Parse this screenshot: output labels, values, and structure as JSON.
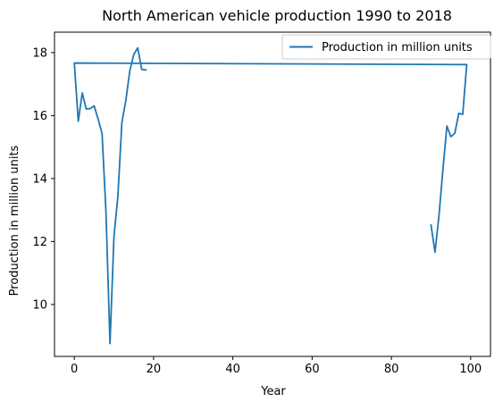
{
  "chart_data": {
    "type": "line",
    "title": "North American vehicle production 1990 to 2018",
    "xlabel": "Year",
    "ylabel": "Production in million units",
    "xlim": [
      -5,
      105
    ],
    "ylim": [
      8.35,
      18.65
    ],
    "x_ticks": [
      0,
      20,
      40,
      60,
      80,
      100
    ],
    "y_ticks": [
      10,
      12,
      14,
      16,
      18
    ],
    "x_tick_labels": [
      "0",
      "20",
      "40",
      "60",
      "80",
      "100"
    ],
    "y_tick_labels": [
      "10",
      "12",
      "14",
      "16",
      "18"
    ],
    "grid": false,
    "legend": {
      "position": "upper right",
      "entries": [
        "Production in million units"
      ]
    },
    "colors": {
      "series": "#1f77b4",
      "axes": "#000000",
      "legend_border": "#cccccc"
    },
    "series": [
      {
        "name": "Production in million units",
        "color": "#1f77b4",
        "points": [
          {
            "x": 90,
            "y": 12.52
          },
          {
            "x": 91,
            "y": 11.66
          },
          {
            "x": 92,
            "y": 12.82
          },
          {
            "x": 93,
            "y": 14.28
          },
          {
            "x": 94,
            "y": 15.67
          },
          {
            "x": 95,
            "y": 15.33
          },
          {
            "x": 96,
            "y": 15.44
          },
          {
            "x": 97,
            "y": 16.07
          },
          {
            "x": 98,
            "y": 16.04
          },
          {
            "x": 99,
            "y": 17.62
          },
          {
            "x": 0,
            "y": 17.67
          },
          {
            "x": 1,
            "y": 15.82
          },
          {
            "x": 2,
            "y": 16.72
          },
          {
            "x": 3,
            "y": 16.21
          },
          {
            "x": 4,
            "y": 16.22
          },
          {
            "x": 5,
            "y": 16.31
          },
          {
            "x": 6,
            "y": 15.89
          },
          {
            "x": 7,
            "y": 15.43
          },
          {
            "x": 8,
            "y": 12.9
          },
          {
            "x": 9,
            "y": 8.76
          },
          {
            "x": 10,
            "y": 12.15
          },
          {
            "x": 11,
            "y": 13.45
          },
          {
            "x": 12,
            "y": 15.78
          },
          {
            "x": 13,
            "y": 16.48
          },
          {
            "x": 14,
            "y": 17.42
          },
          {
            "x": 15,
            "y": 17.94
          },
          {
            "x": 16,
            "y": 18.15
          },
          {
            "x": 17,
            "y": 17.47
          },
          {
            "x": 18,
            "y": 17.45
          }
        ]
      }
    ]
  }
}
